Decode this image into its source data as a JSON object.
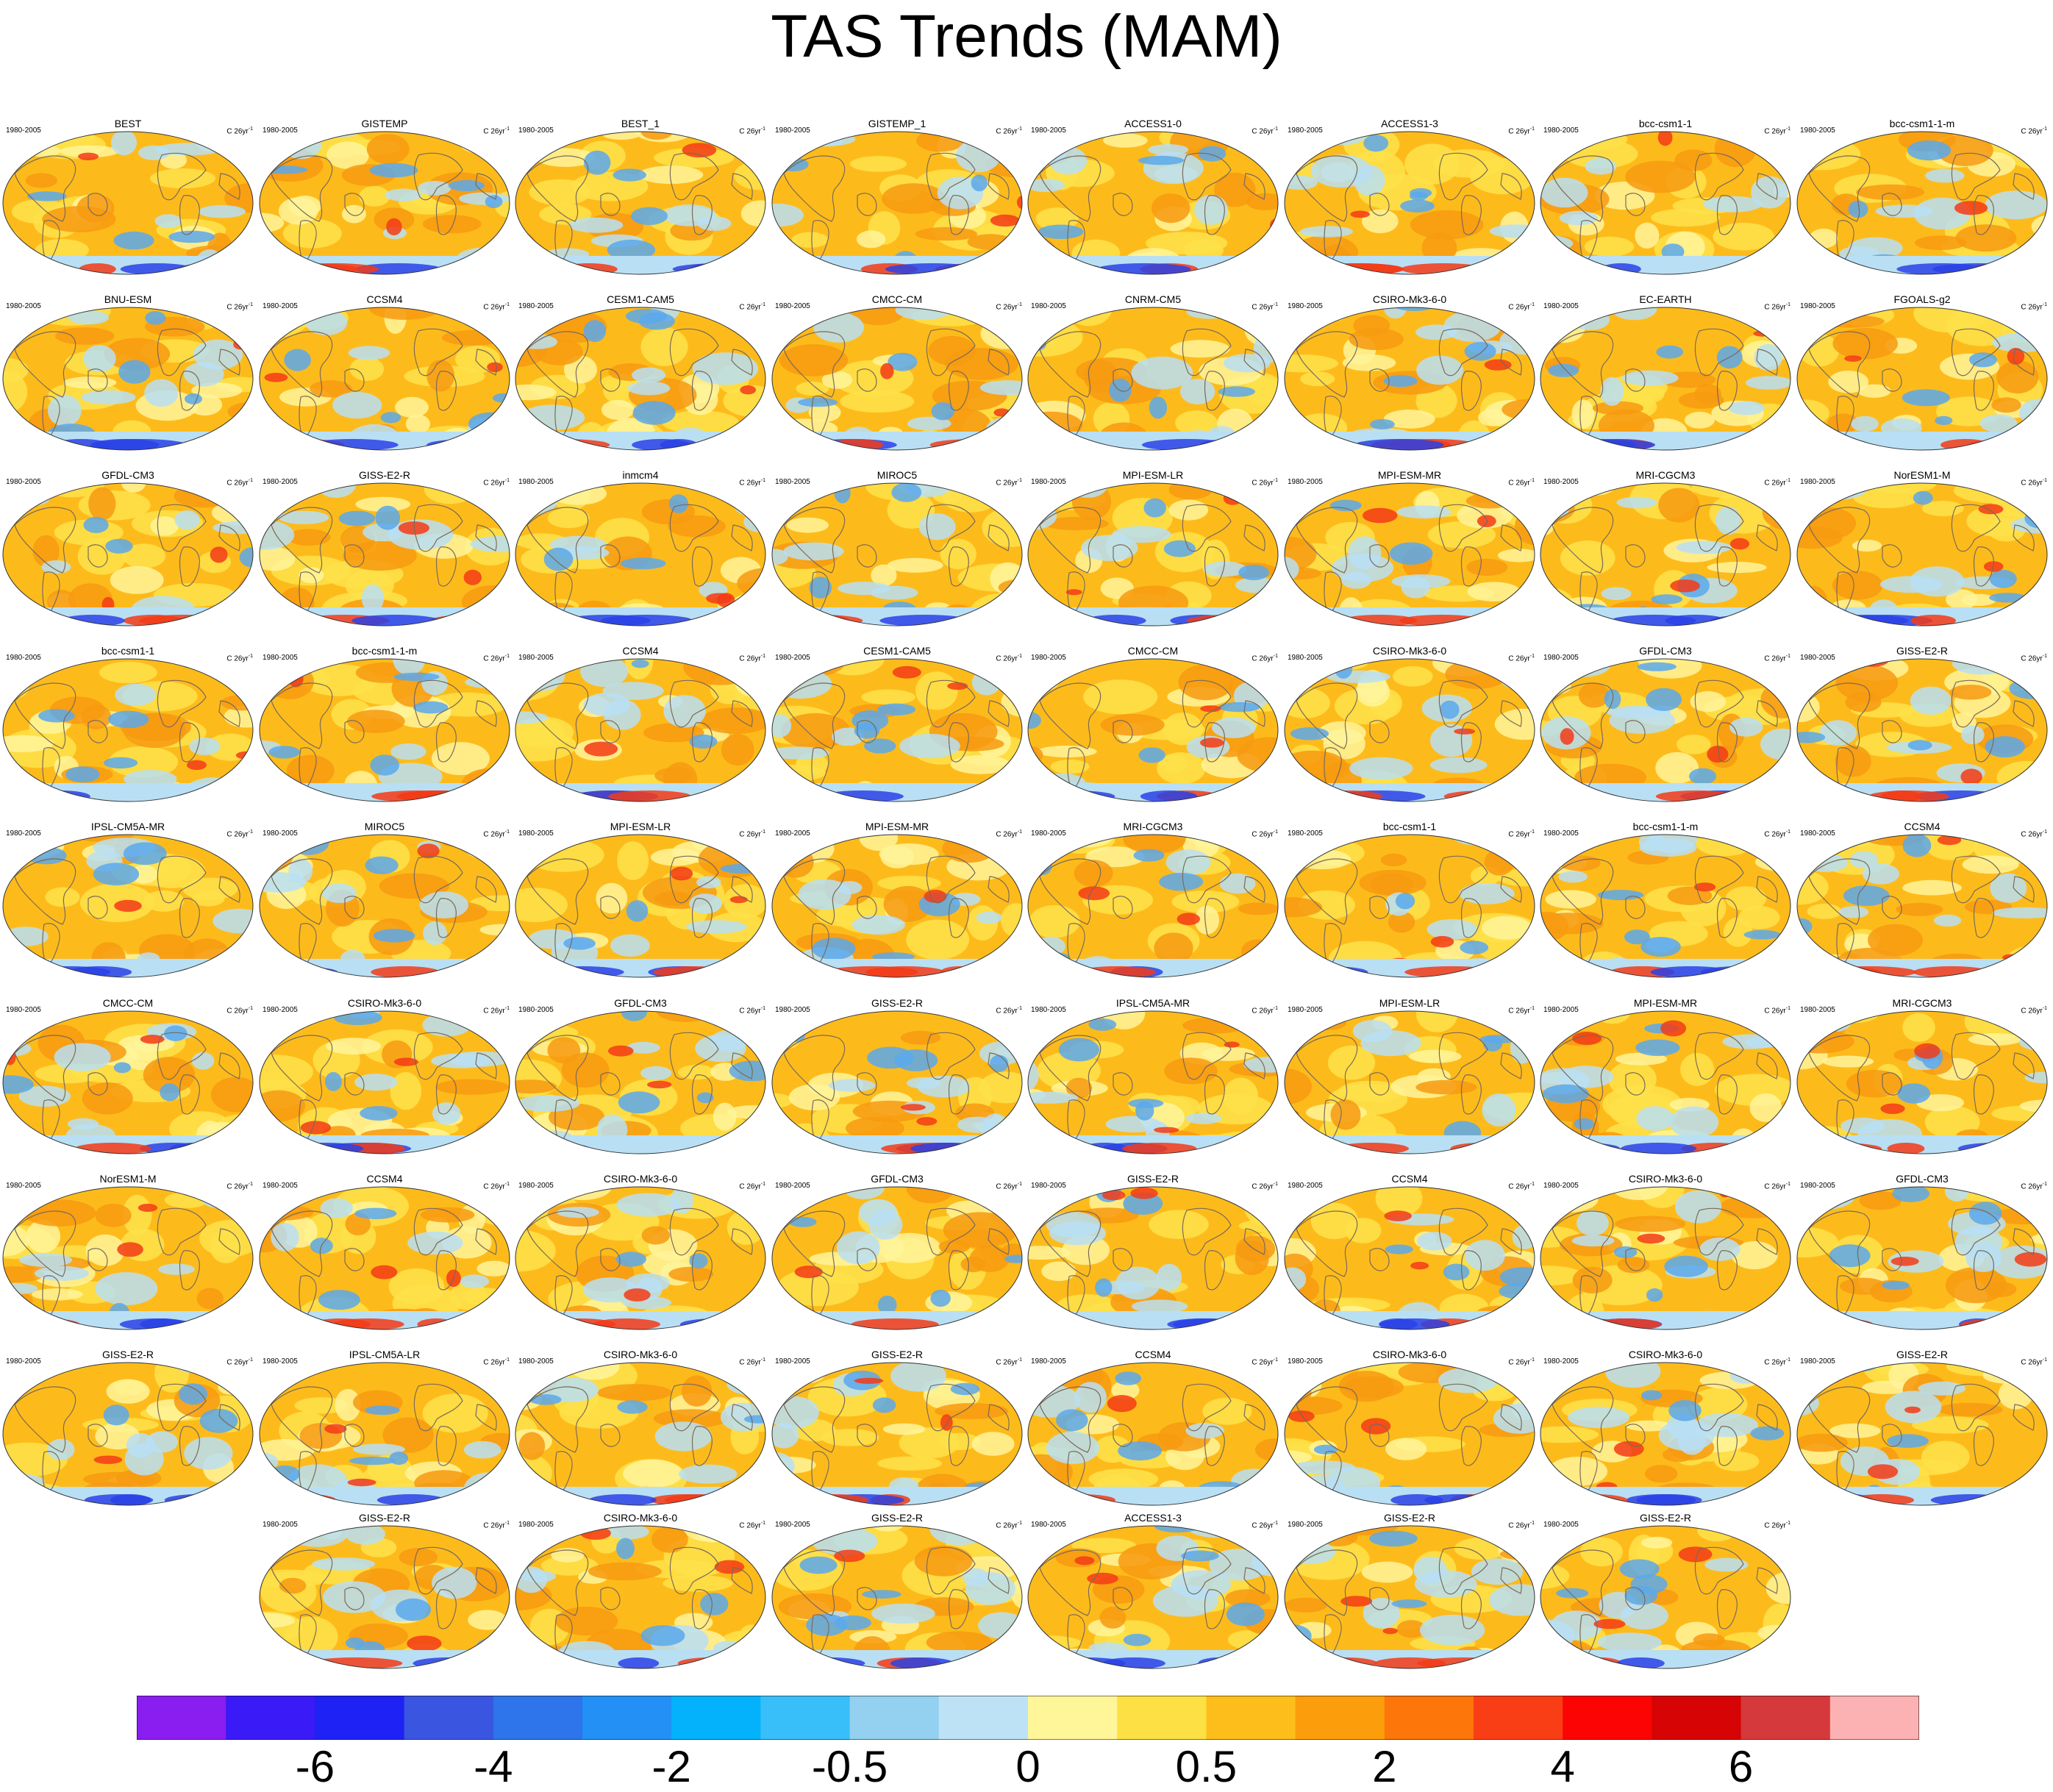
{
  "title": "TAS Trends (MAM)",
  "panel_period": "1980-2005",
  "panel_units": "C 26yr",
  "panel_units_exponent": "-1",
  "panel_rows": [
    [
      "BEST",
      "GISTEMP",
      "BEST_1",
      "GISTEMP_1",
      "ACCESS1-0",
      "ACCESS1-3",
      "bcc-csm1-1",
      "bcc-csm1-1-m"
    ],
    [
      "BNU-ESM",
      "CCSM4",
      "CESM1-CAM5",
      "CMCC-CM",
      "CNRM-CM5",
      "CSIRO-Mk3-6-0",
      "EC-EARTH",
      "FGOALS-g2"
    ],
    [
      "GFDL-CM3",
      "GISS-E2-R",
      "inmcm4",
      "MIROC5",
      "MPI-ESM-LR",
      "MPI-ESM-MR",
      "MRI-CGCM3",
      "NorESM1-M"
    ],
    [
      "bcc-csm1-1",
      "bcc-csm1-1-m",
      "CCSM4",
      "CESM1-CAM5",
      "CMCC-CM",
      "CSIRO-Mk3-6-0",
      "GFDL-CM3",
      "GISS-E2-R"
    ],
    [
      "IPSL-CM5A-MR",
      "MIROC5",
      "MPI-ESM-LR",
      "MPI-ESM-MR",
      "MRI-CGCM3",
      "bcc-csm1-1",
      "bcc-csm1-1-m",
      "CCSM4"
    ],
    [
      "CMCC-CM",
      "CSIRO-Mk3-6-0",
      "GFDL-CM3",
      "GISS-E2-R",
      "IPSL-CM5A-MR",
      "MPI-ESM-LR",
      "MPI-ESM-MR",
      "MRI-CGCM3"
    ],
    [
      "NorESM1-M",
      "CCSM4",
      "CSIRO-Mk3-6-0",
      "GFDL-CM3",
      "GISS-E2-R",
      "CCSM4",
      "CSIRO-Mk3-6-0",
      "GFDL-CM3"
    ],
    [
      "GISS-E2-R",
      "IPSL-CM5A-LR",
      "CSIRO-Mk3-6-0",
      "GISS-E2-R",
      "CCSM4",
      "CSIRO-Mk3-6-0",
      "CSIRO-Mk3-6-0",
      "GISS-E2-R"
    ],
    [
      "GISS-E2-R",
      "CSIRO-Mk3-6-0",
      "GISS-E2-R",
      "ACCESS1-3",
      "GISS-E2-R",
      "GISS-E2-R"
    ]
  ],
  "colors": {
    "land_outline": "#7a6a5a",
    "map_border": "#333333",
    "dominant_warm": "#fdbb1b",
    "light_warm": "#fee24a",
    "pale_yellow": "#fff59a",
    "light_blue": "#b9dff4",
    "mid_blue": "#5aa8ec",
    "deep_blue": "#2a42e6",
    "orange": "#f79a10",
    "red": "#f33b16"
  },
  "chart_data": {
    "type": "heatmap",
    "title": "TAS Trends (MAM)",
    "colorbar": {
      "colors": [
        "#8a1ef0",
        "#3a1af6",
        "#1e22f4",
        "#3a55e0",
        "#2e74ea",
        "#2290f4",
        "#04b2fc",
        "#38bef8",
        "#94d0f0",
        "#bde2f6",
        "#fff69a",
        "#fde043",
        "#fdbe1b",
        "#fc9e0b",
        "#fc760a",
        "#f93e16",
        "#fc0404",
        "#d60404",
        "#d6393b",
        "#fcb2b2"
      ],
      "tick_labels": [
        "-6",
        "-4",
        "-2",
        "-0.5",
        "0",
        "0.5",
        "2",
        "4",
        "6"
      ],
      "tick_boundary_index": [
        2,
        4,
        6,
        8,
        10,
        12,
        14,
        16,
        18
      ]
    }
  }
}
